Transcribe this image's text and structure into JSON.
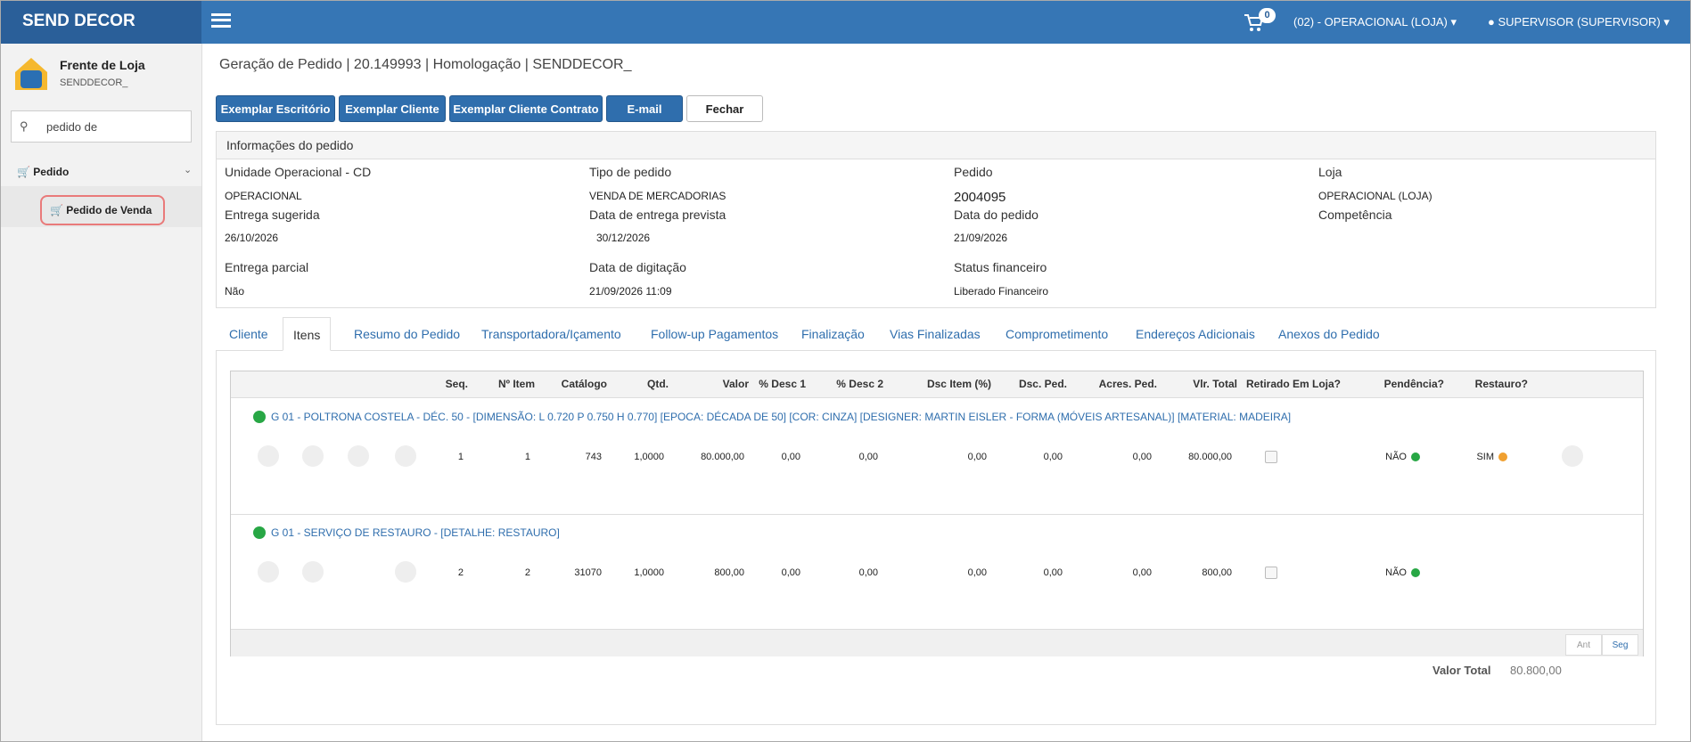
{
  "header": {
    "brand": "SEND DECOR",
    "cart_count": "0",
    "unit": "(02) - OPERACIONAL (LOJA)",
    "user": "SUPERVISOR (SUPERVISOR)"
  },
  "sidebar": {
    "title": "Frente de Loja",
    "subtitle": "SENDDECOR_",
    "search": "pedido de",
    "menu": "Pedido",
    "submenu": "Pedido de Venda"
  },
  "page": {
    "title": "Geração de Pedido | 20.149993 | Homologação | SENDDECOR_"
  },
  "buttons": [
    "Exemplar Escritório",
    "Exemplar Cliente",
    "Exemplar Cliente Contrato",
    "E-mail",
    "Fechar"
  ],
  "info": {
    "title": "Informações do pedido",
    "fields": [
      {
        "label": "Unidade Operacional - CD",
        "value": "OPERACIONAL"
      },
      {
        "label": "Tipo de pedido",
        "value": "VENDA DE MERCADORIAS"
      },
      {
        "label": "Pedido",
        "value": "2004095"
      },
      {
        "label": "Loja",
        "value": "OPERACIONAL (LOJA)"
      },
      {
        "label": "Entrega sugerida",
        "value": "26/10/2026"
      },
      {
        "label": "Data de entrega prevista",
        "value": "30/12/2026"
      },
      {
        "label": "Data do pedido",
        "value": "21/09/2026"
      },
      {
        "label": "Competência"
      },
      {
        "label": "Entrega parcial",
        "value": "Não"
      },
      {
        "label": "Data de digitação",
        "value": "21/09/2026 11:09"
      },
      {
        "label": "Status financeiro",
        "value": "Liberado Financeiro"
      }
    ]
  },
  "tabs": [
    "Cliente",
    "Itens",
    "Resumo do Pedido",
    "Transportadora/Içamento",
    "Follow-up Pagamentos",
    "Finalização",
    "Vias Finalizadas",
    "Comprometimento",
    "Endereços Adicionais",
    "Anexos do Pedido"
  ],
  "table": {
    "columns": [
      "Seq.",
      "Nº Item",
      "Catálogo",
      "Qtd.",
      "Valor",
      "% Desc 1",
      "% Desc 2",
      "Dsc Item (%)",
      "Dsc. Ped.",
      "Acres. Ped.",
      "Vlr. Total",
      "Retirado Em Loja?",
      "Pendência?",
      "Restauro?"
    ],
    "groups": [
      {
        "description": "G 01 - POLTRONA COSTELA - DÉC. 50 - [DIMENSÃO: L 0.720 P 0.750 H 0.770] [EPOCA: DÉCADA DE 50] [COR: CINZA] [DESIGNER: MARTIN EISLER - FORMA (MÓVEIS ARTESANAL)] [MATERIAL: MADEIRA]",
        "cells": [
          "1",
          "1",
          "743",
          "1,0000",
          "80.000,00",
          "0,00",
          "0,00",
          "0,00",
          "0,00",
          "0,00",
          "80.000,00"
        ],
        "pendencia": "NÃO",
        "restauro": "SIM"
      },
      {
        "description": "G 01 - SERVIÇO DE RESTAURO - [DETALHE: RESTAURO]",
        "cells": [
          "2",
          "2",
          "31070",
          "1,0000",
          "800,00",
          "0,00",
          "0,00",
          "0,00",
          "0,00",
          "0,00",
          "800,00"
        ],
        "pendencia": "NÃO"
      }
    ]
  },
  "pagination": [
    "Ant",
    "Seg"
  ],
  "total": {
    "label": "Valor Total",
    "value": "80.800,00"
  }
}
